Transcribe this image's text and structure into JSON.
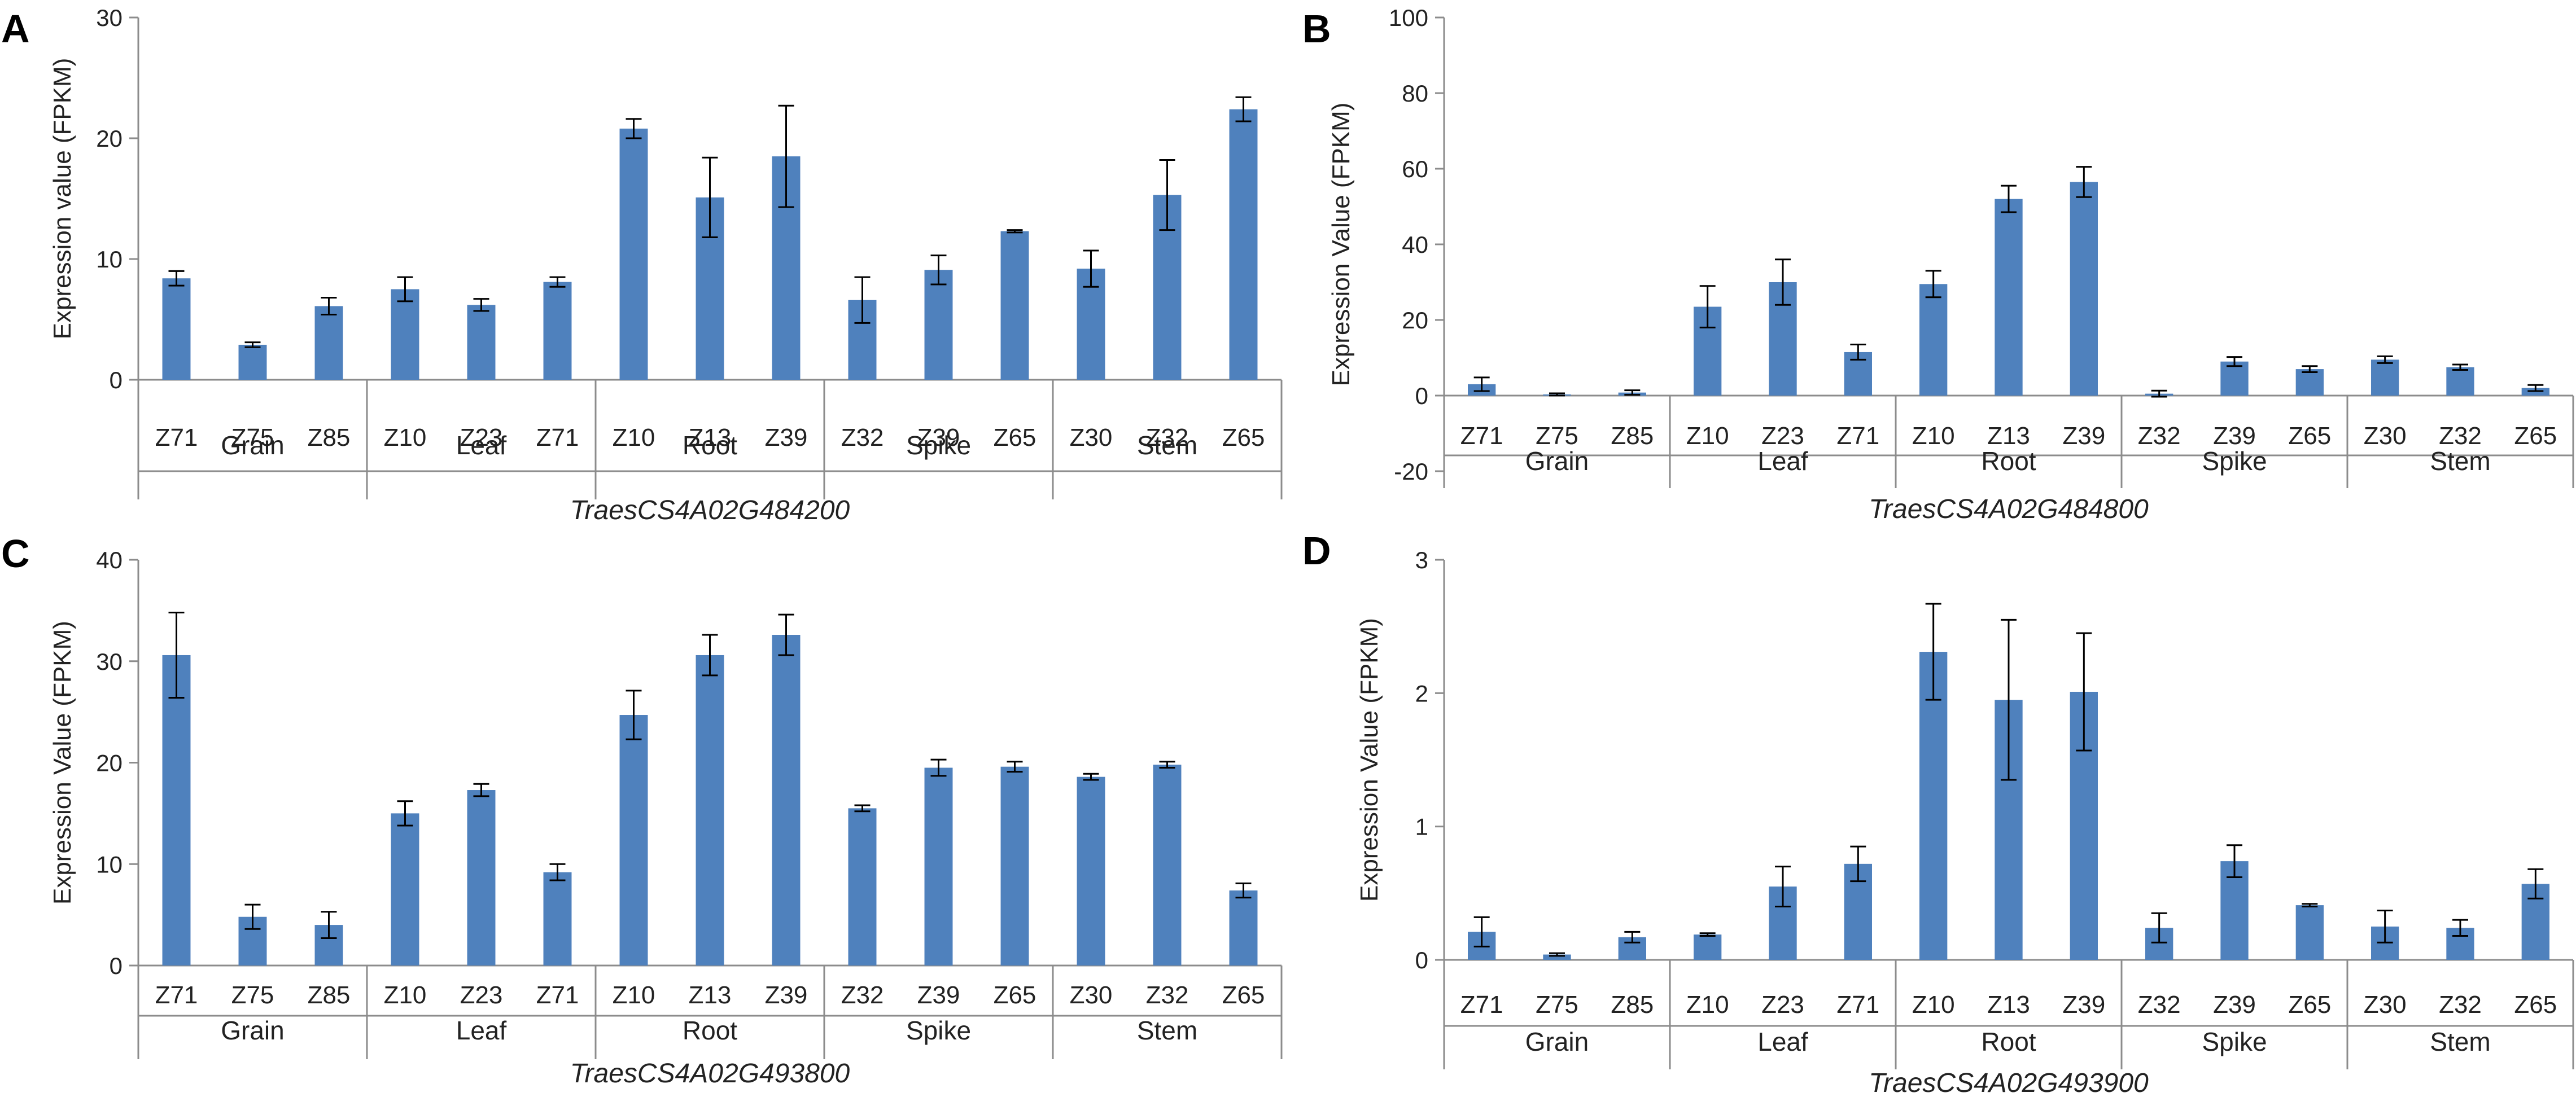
{
  "chart_data": [
    {
      "type": "bar",
      "panel_label": "A",
      "gene": "TraesCS4A02G484200",
      "ylabel": "Expression value (FPKM)",
      "ylim": [
        0,
        30
      ],
      "yticks": [
        "0",
        "10",
        "20",
        "30"
      ],
      "groups": [
        {
          "name": "Grain",
          "categories": [
            "Z71",
            "Z75",
            "Z85"
          ]
        },
        {
          "name": "Leaf",
          "categories": [
            "Z10",
            "Z23",
            "Z71"
          ]
        },
        {
          "name": "Root",
          "categories": [
            "Z10",
            "Z13",
            "Z39"
          ]
        },
        {
          "name": "Spike",
          "categories": [
            "Z32",
            "Z39",
            "Z65"
          ]
        },
        {
          "name": "Stem",
          "categories": [
            "Z30",
            "Z32",
            "Z65"
          ]
        }
      ],
      "values": [
        8.4,
        2.9,
        6.1,
        7.5,
        6.2,
        8.1,
        20.8,
        15.1,
        18.5,
        6.6,
        9.1,
        12.3,
        9.2,
        15.3,
        22.4
      ],
      "errors": [
        0.6,
        0.2,
        0.7,
        1.0,
        0.5,
        0.4,
        0.8,
        3.3,
        4.2,
        1.9,
        1.2,
        0.1,
        1.5,
        2.9,
        1.0
      ]
    },
    {
      "type": "bar",
      "panel_label": "B",
      "gene": "TraesCS4A02G484800",
      "ylabel": "Expression Value (FPKM)",
      "ylim": [
        -20,
        100
      ],
      "yticks": [
        "-20",
        "0",
        "20",
        "40",
        "60",
        "80",
        "100"
      ],
      "groups": [
        {
          "name": "Grain",
          "categories": [
            "Z71",
            "Z75",
            "Z85"
          ]
        },
        {
          "name": "Leaf",
          "categories": [
            "Z10",
            "Z23",
            "Z71"
          ]
        },
        {
          "name": "Root",
          "categories": [
            "Z10",
            "Z13",
            "Z39"
          ]
        },
        {
          "name": "Spike",
          "categories": [
            "Z32",
            "Z39",
            "Z65"
          ]
        },
        {
          "name": "Stem",
          "categories": [
            "Z30",
            "Z32",
            "Z65"
          ]
        }
      ],
      "values": [
        3.0,
        0.3,
        0.8,
        23.5,
        30.0,
        11.5,
        29.5,
        52.0,
        56.5,
        0.5,
        9.0,
        7.0,
        9.5,
        7.5,
        2.0
      ],
      "errors": [
        1.8,
        0.3,
        0.6,
        5.5,
        6.0,
        2.0,
        3.5,
        3.5,
        4.0,
        0.8,
        1.2,
        0.8,
        0.9,
        0.7,
        0.8
      ]
    },
    {
      "type": "bar",
      "panel_label": "C",
      "gene": "TraesCS4A02G493800",
      "ylabel": "Expression Value (FPKM)",
      "ylim": [
        0,
        40
      ],
      "yticks": [
        "0",
        "10",
        "20",
        "30",
        "40"
      ],
      "groups": [
        {
          "name": "Grain",
          "categories": [
            "Z71",
            "Z75",
            "Z85"
          ]
        },
        {
          "name": "Leaf",
          "categories": [
            "Z10",
            "Z23",
            "Z71"
          ]
        },
        {
          "name": "Root",
          "categories": [
            "Z10",
            "Z13",
            "Z39"
          ]
        },
        {
          "name": "Spike",
          "categories": [
            "Z32",
            "Z39",
            "Z65"
          ]
        },
        {
          "name": "Stem",
          "categories": [
            "Z30",
            "Z32",
            "Z65"
          ]
        }
      ],
      "values": [
        30.6,
        4.8,
        4.0,
        15.0,
        17.3,
        9.2,
        24.7,
        30.6,
        32.6,
        15.5,
        19.5,
        19.6,
        18.6,
        19.8,
        7.4
      ],
      "errors": [
        4.2,
        1.2,
        1.3,
        1.2,
        0.6,
        0.8,
        2.4,
        2.0,
        2.0,
        0.3,
        0.8,
        0.5,
        0.3,
        0.3,
        0.7
      ]
    },
    {
      "type": "bar",
      "panel_label": "D",
      "gene": "TraesCS4A02G493900",
      "ylabel": "Expression Value (FPKM)",
      "ylim": [
        0,
        3
      ],
      "yticks": [
        "0",
        "1",
        "2",
        "3"
      ],
      "groups": [
        {
          "name": "Grain",
          "categories": [
            "Z71",
            "Z75",
            "Z85"
          ]
        },
        {
          "name": "Leaf",
          "categories": [
            "Z10",
            "Z23",
            "Z71"
          ]
        },
        {
          "name": "Root",
          "categories": [
            "Z10",
            "Z13",
            "Z39"
          ]
        },
        {
          "name": "Spike",
          "categories": [
            "Z32",
            "Z39",
            "Z65"
          ]
        },
        {
          "name": "Stem",
          "categories": [
            "Z30",
            "Z32",
            "Z65"
          ]
        }
      ],
      "values": [
        0.21,
        0.04,
        0.17,
        0.19,
        0.55,
        0.72,
        2.31,
        1.95,
        2.01,
        0.24,
        0.74,
        0.41,
        0.25,
        0.24,
        0.57
      ],
      "errors": [
        0.11,
        0.01,
        0.04,
        0.01,
        0.15,
        0.13,
        0.36,
        0.6,
        0.44,
        0.11,
        0.12,
        0.01,
        0.12,
        0.06,
        0.11
      ]
    }
  ],
  "colors": {
    "bar": "#4f81bd",
    "axis": "#8c8c8c",
    "error": "#000000"
  }
}
